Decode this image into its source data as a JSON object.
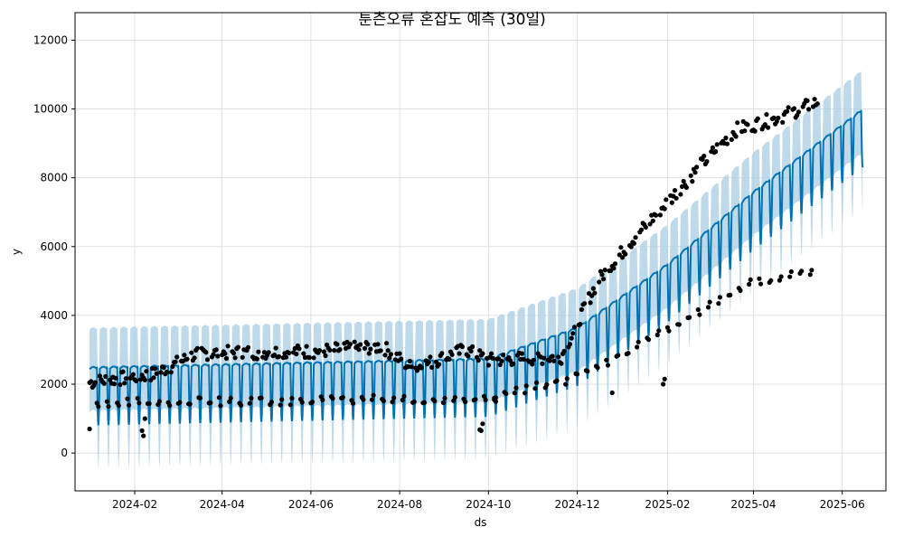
{
  "chart_data": {
    "type": "line",
    "title": "툰츤오류 혼잡도 예측 (30일)",
    "xlabel": "ds",
    "ylabel": "y",
    "x_range": [
      "2023-12-22",
      "2025-07-01"
    ],
    "ylim": [
      -1100,
      12800
    ],
    "x_ticks": [
      "2024-02-01",
      "2024-04-01",
      "2024-06-01",
      "2024-08-01",
      "2024-10-01",
      "2024-12-01",
      "2025-02-01",
      "2025-04-01",
      "2025-06-01"
    ],
    "x_tick_labels": [
      "2024-02",
      "2024-04",
      "2024-06",
      "2024-08",
      "2024-10",
      "2024-12",
      "2025-02",
      "2025-04",
      "2025-06"
    ],
    "y_ticks": [
      0,
      2000,
      4000,
      6000,
      8000,
      10000,
      12000
    ],
    "y_tick_labels": [
      "0",
      "2000",
      "4000",
      "6000",
      "8000",
      "10000",
      "12000"
    ],
    "grid": true,
    "forecast": {
      "start": "2024-01-01",
      "end": "2025-06-15",
      "trend": [
        {
          "date": "2024-01-01",
          "value": 2100
        },
        {
          "date": "2024-10-01",
          "value": 2350
        },
        {
          "date": "2024-12-01",
          "value": 3250
        },
        {
          "date": "2025-02-01",
          "value": 5100
        },
        {
          "date": "2025-04-01",
          "value": 7200
        },
        {
          "date": "2025-06-15",
          "value": 9600
        }
      ],
      "weekly_high": 400,
      "weekly_low": -1300,
      "weekly_low_days": 2,
      "interval_upper": 1150,
      "interval_lower": 1250
    },
    "observed": {
      "start": "2024-01-01",
      "end": "2025-05-15",
      "weekday_noise": 200,
      "weekend_low": [
        {
          "date": "2024-01-01",
          "value": 1450
        },
        {
          "date": "2024-10-01",
          "value": 1600
        },
        {
          "date": "2024-12-01",
          "value": 2200
        },
        {
          "date": "2025-02-01",
          "value": 3600
        },
        {
          "date": "2025-04-01",
          "value": 5000
        },
        {
          "date": "2025-05-15",
          "value": 5300
        }
      ],
      "weekday_level": [
        {
          "date": "2024-01-01",
          "value": 2050
        },
        {
          "date": "2024-02-15",
          "value": 2300
        },
        {
          "date": "2024-03-15",
          "value": 2900
        },
        {
          "date": "2024-06-01",
          "value": 2950
        },
        {
          "date": "2024-07-20",
          "value": 3100
        },
        {
          "date": "2024-08-10",
          "value": 2450
        },
        {
          "date": "2024-09-15",
          "value": 3000
        },
        {
          "date": "2024-10-01",
          "value": 2700
        },
        {
          "date": "2024-11-20",
          "value": 2800
        },
        {
          "date": "2024-12-15",
          "value": 5000
        },
        {
          "date": "2025-01-10",
          "value": 6300
        },
        {
          "date": "2025-02-01",
          "value": 7300
        },
        {
          "date": "2025-03-01",
          "value": 8600
        },
        {
          "date": "2025-03-20",
          "value": 9400
        },
        {
          "date": "2025-04-15",
          "value": 9700
        },
        {
          "date": "2025-05-15",
          "value": 10200
        }
      ],
      "outliers": [
        {
          "date": "2024-01-01",
          "value": 700
        },
        {
          "date": "2024-02-06",
          "value": 650
        },
        {
          "date": "2024-02-07",
          "value": 500
        },
        {
          "date": "2024-02-08",
          "value": 1000
        },
        {
          "date": "2024-09-25",
          "value": 680
        },
        {
          "date": "2024-09-26",
          "value": 650
        },
        {
          "date": "2024-09-27",
          "value": 850
        },
        {
          "date": "2024-10-05",
          "value": 1550
        },
        {
          "date": "2024-10-06",
          "value": 1500
        },
        {
          "date": "2024-12-25",
          "value": 1750
        },
        {
          "date": "2025-01-29",
          "value": 2000
        },
        {
          "date": "2025-01-30",
          "value": 2150
        }
      ]
    },
    "colors": {
      "forecast_line": "#0072B2",
      "interval": "#A8CEE3",
      "observed": "#000000",
      "grid": "#E0E0E0"
    }
  }
}
